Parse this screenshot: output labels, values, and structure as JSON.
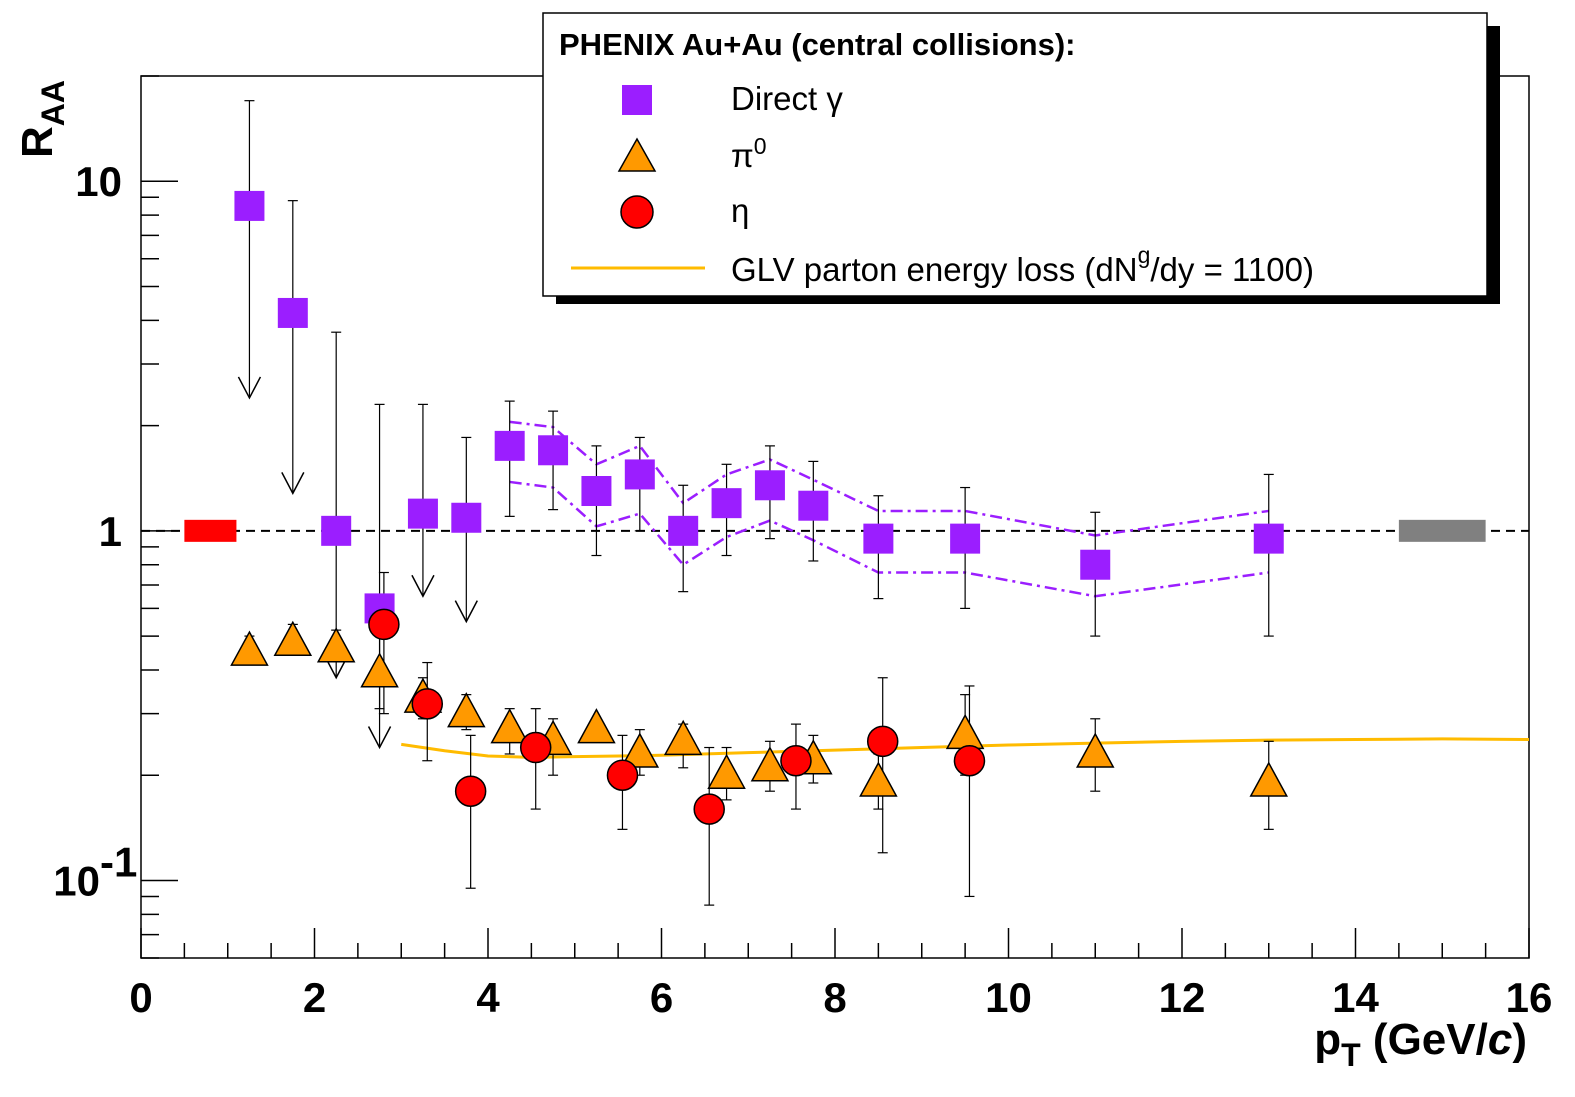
{
  "chart_data": {
    "type": "scatter",
    "title": "",
    "xlabel": "p_T (GeV/c)",
    "ylabel": "R_AA",
    "xlim": [
      0,
      16
    ],
    "ylim": [
      0.06,
      20
    ],
    "y_scale": "log",
    "x_ticks": [
      "0",
      "2",
      "4",
      "6",
      "8",
      "10",
      "12",
      "14",
      "16"
    ],
    "y_ticks": [
      {
        "value": 10,
        "label": "10"
      },
      {
        "value": 1,
        "label": "1"
      },
      {
        "value": 0.1,
        "label": "10",
        "exponent": "-1"
      }
    ],
    "reference_line": {
      "y": 1,
      "style": "dashed",
      "color": "#000000"
    },
    "normalization_boxes": [
      {
        "x_range": [
          0.5,
          1.1
        ],
        "y": 1,
        "color": "#ff0000"
      },
      {
        "x_range": [
          14.5,
          15.5
        ],
        "y": 1,
        "color": "#808080"
      }
    ],
    "legend": {
      "title": "PHENIX Au+Au (central collisions):",
      "position": "top-right",
      "entries": [
        {
          "label": "Direct γ",
          "marker": "square",
          "color": "#9b1eff"
        },
        {
          "label": "π0",
          "label_base": "π",
          "label_sup": "0",
          "marker": "triangle",
          "color": "#ff9900"
        },
        {
          "label": "η",
          "marker": "circle",
          "color": "#ff0000"
        },
        {
          "label": "GLV parton energy loss (dNg/dy = 1100)",
          "label_pre": "GLV parton energy loss (dN",
          "label_sup": "g",
          "label_post": "/dy = 1100)",
          "marker": "line",
          "color": "#ffbb00"
        }
      ]
    },
    "series": [
      {
        "name": "Direct γ",
        "marker": "square",
        "color": "#9b1eff",
        "points": [
          {
            "x": 1.25,
            "y": 8.5,
            "err_hi": 17,
            "upper_limit_to": 2.4
          },
          {
            "x": 1.75,
            "y": 4.2,
            "err_hi": 8.8,
            "upper_limit_to": 1.28
          },
          {
            "x": 2.25,
            "y": 1.0,
            "err_hi": 3.7,
            "upper_limit_to": 0.38
          },
          {
            "x": 2.75,
            "y": 0.6,
            "err_hi": 2.3,
            "upper_limit_to": 0.24
          },
          {
            "x": 3.25,
            "y": 1.12,
            "err_hi": 2.3,
            "upper_limit_to": 0.65
          },
          {
            "x": 3.75,
            "y": 1.09,
            "err_hi": 1.85,
            "upper_limit_to": 0.55
          },
          {
            "x": 4.25,
            "y": 1.75,
            "err_lo": 1.1,
            "err_hi": 2.35
          },
          {
            "x": 4.75,
            "y": 1.7,
            "err_lo": 1.15,
            "err_hi": 2.2
          },
          {
            "x": 5.25,
            "y": 1.3,
            "err_lo": 0.85,
            "err_hi": 1.75
          },
          {
            "x": 5.75,
            "y": 1.45,
            "err_lo": 1.0,
            "err_hi": 1.85
          },
          {
            "x": 6.25,
            "y": 1.0,
            "err_lo": 0.67,
            "err_hi": 1.35
          },
          {
            "x": 6.75,
            "y": 1.2,
            "err_lo": 0.85,
            "err_hi": 1.55
          },
          {
            "x": 7.25,
            "y": 1.35,
            "err_lo": 0.95,
            "err_hi": 1.75
          },
          {
            "x": 7.75,
            "y": 1.18,
            "err_lo": 0.82,
            "err_hi": 1.58
          },
          {
            "x": 8.5,
            "y": 0.95,
            "err_lo": 0.64,
            "err_hi": 1.26
          },
          {
            "x": 9.5,
            "y": 0.95,
            "err_lo": 0.6,
            "err_hi": 1.33
          },
          {
            "x": 11.0,
            "y": 0.8,
            "err_lo": 0.5,
            "err_hi": 1.13
          },
          {
            "x": 13.0,
            "y": 0.95,
            "err_lo": 0.5,
            "err_hi": 1.45
          }
        ],
        "syst_band": {
          "x": [
            4.25,
            4.75,
            5.25,
            5.75,
            6.25,
            6.75,
            7.25,
            7.75,
            8.5,
            9.5,
            11.0,
            13.0
          ],
          "upper": [
            2.05,
            1.98,
            1.55,
            1.75,
            1.2,
            1.45,
            1.6,
            1.4,
            1.14,
            1.14,
            0.97,
            1.14
          ],
          "lower": [
            1.38,
            1.33,
            1.03,
            1.12,
            0.8,
            0.96,
            1.07,
            0.94,
            0.76,
            0.76,
            0.65,
            0.76
          ]
        }
      },
      {
        "name": "π0",
        "marker": "triangle",
        "color": "#ff9900",
        "points": [
          {
            "x": 1.25,
            "y": 0.45,
            "err_lo": 0.42,
            "err_hi": 0.5
          },
          {
            "x": 1.75,
            "y": 0.48,
            "err_lo": 0.45,
            "err_hi": 0.54
          },
          {
            "x": 2.25,
            "y": 0.46,
            "err_lo": 0.43,
            "err_hi": 0.52
          },
          {
            "x": 2.75,
            "y": 0.39,
            "err_lo": 0.31,
            "err_hi": 0.52
          },
          {
            "x": 3.25,
            "y": 0.33,
            "err_lo": 0.29,
            "err_hi": 0.38
          },
          {
            "x": 3.75,
            "y": 0.3,
            "err_lo": 0.27,
            "err_hi": 0.34
          },
          {
            "x": 4.25,
            "y": 0.27,
            "err_lo": 0.23,
            "err_hi": 0.31
          },
          {
            "x": 4.75,
            "y": 0.25,
            "err_lo": 0.2,
            "err_hi": 0.29
          },
          {
            "x": 5.25,
            "y": 0.27,
            "err_lo": 0.25,
            "err_hi": 0.29
          },
          {
            "x": 5.75,
            "y": 0.23,
            "err_lo": 0.2,
            "err_hi": 0.27
          },
          {
            "x": 6.25,
            "y": 0.25,
            "err_lo": 0.21,
            "err_hi": 0.28
          },
          {
            "x": 6.75,
            "y": 0.2,
            "err_lo": 0.17,
            "err_hi": 0.24
          },
          {
            "x": 7.25,
            "y": 0.21,
            "err_lo": 0.18,
            "err_hi": 0.25
          },
          {
            "x": 7.75,
            "y": 0.22,
            "err_lo": 0.19,
            "err_hi": 0.26
          },
          {
            "x": 8.5,
            "y": 0.19,
            "err_lo": 0.16,
            "err_hi": 0.23
          },
          {
            "x": 9.5,
            "y": 0.26,
            "err_lo": 0.2,
            "err_hi": 0.34
          },
          {
            "x": 11.0,
            "y": 0.23,
            "err_lo": 0.18,
            "err_hi": 0.29
          },
          {
            "x": 13.0,
            "y": 0.19,
            "err_lo": 0.14,
            "err_hi": 0.25
          }
        ]
      },
      {
        "name": "η",
        "marker": "circle",
        "color": "#ff0000",
        "points": [
          {
            "x": 2.8,
            "y": 0.54,
            "err_lo": 0.3,
            "err_hi": 0.76
          },
          {
            "x": 3.3,
            "y": 0.32,
            "err_lo": 0.22,
            "err_hi": 0.42
          },
          {
            "x": 3.8,
            "y": 0.18,
            "err_lo": 0.095,
            "err_hi": 0.26
          },
          {
            "x": 4.55,
            "y": 0.24,
            "err_lo": 0.16,
            "err_hi": 0.31
          },
          {
            "x": 5.55,
            "y": 0.2,
            "err_lo": 0.14,
            "err_hi": 0.26
          },
          {
            "x": 6.55,
            "y": 0.16,
            "err_lo": 0.085,
            "err_hi": 0.24
          },
          {
            "x": 7.55,
            "y": 0.22,
            "err_lo": 0.16,
            "err_hi": 0.28
          },
          {
            "x": 8.55,
            "y": 0.25,
            "err_lo": 0.12,
            "err_hi": 0.38
          },
          {
            "x": 9.55,
            "y": 0.22,
            "err_lo": 0.09,
            "err_hi": 0.36
          }
        ]
      },
      {
        "name": "GLV parton energy loss (dNg/dy = 1100)",
        "marker": "line",
        "color": "#ffbb00",
        "x": [
          3.0,
          3.5,
          4.0,
          4.5,
          5.0,
          6.0,
          7.0,
          8.0,
          9.0,
          10.0,
          11.0,
          12.0,
          13.0,
          14.0,
          15.0,
          16.0
        ],
        "y": [
          0.245,
          0.235,
          0.227,
          0.225,
          0.226,
          0.228,
          0.232,
          0.236,
          0.24,
          0.244,
          0.247,
          0.25,
          0.252,
          0.253,
          0.254,
          0.253
        ]
      }
    ]
  }
}
